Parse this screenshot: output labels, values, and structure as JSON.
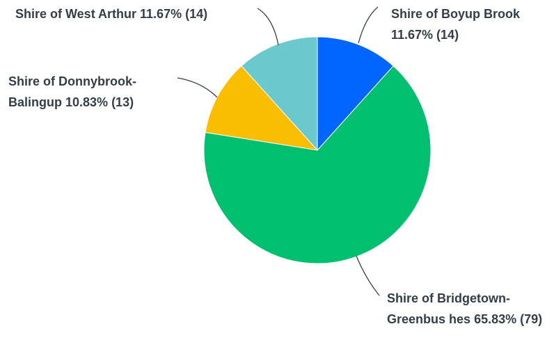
{
  "chart_data": {
    "type": "pie",
    "categories": [
      "Shire of Boyup Brook",
      "Shire of Bridgetown-Greenbus hes",
      "Shire of Donnybrook-Balingup",
      "Shire of West Arthur"
    ],
    "values": [
      11.67,
      65.83,
      10.83,
      11.67
    ],
    "value_labels": [
      "11.67% (14)",
      "65.83% (79)",
      "10.83% (13)",
      "11.67% (14)"
    ],
    "colors": [
      "#0066ff",
      "#00bf6f",
      "#f9be00",
      "#6bc8cd"
    ]
  }
}
